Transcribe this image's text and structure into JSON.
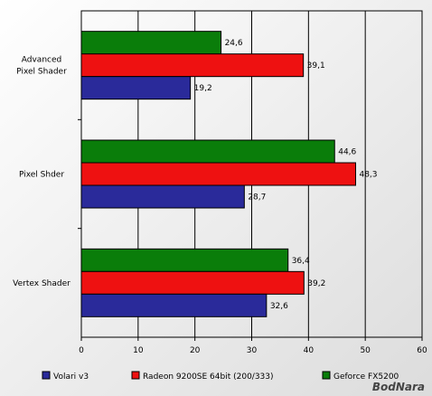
{
  "chart_data": {
    "type": "bar",
    "orientation": "horizontal",
    "categories": [
      "Advanced\nPixel Shader",
      "Pixel Shder",
      "Vertex Shader"
    ],
    "series": [
      {
        "name": "Geforce FX5200",
        "color": "#0a7d0a",
        "values": [
          24.6,
          44.6,
          36.4
        ]
      },
      {
        "name": "Radeon 9200SE 64bit (200/333)",
        "color": "#ee1111",
        "values": [
          39.1,
          48.3,
          39.2
        ]
      },
      {
        "name": "Volari v3",
        "color": "#2a2a9a",
        "values": [
          19.2,
          28.7,
          32.6
        ]
      }
    ],
    "value_labels": [
      [
        "24,6",
        "44,6",
        "36,4"
      ],
      [
        "39,1",
        "48,3",
        "39,2"
      ],
      [
        "19,2",
        "28,7",
        "32,6"
      ]
    ],
    "xlim": [
      0,
      60
    ],
    "xticks": [
      0,
      10,
      20,
      30,
      40,
      50,
      60
    ],
    "xlabel": "",
    "ylabel": "",
    "title": "",
    "grid": true,
    "legend_placement": "bottom",
    "legend_order": [
      "Volari v3",
      "Radeon 9200SE 64bit (200/333)",
      "Geforce FX5200"
    ]
  },
  "watermark": "BodNara"
}
